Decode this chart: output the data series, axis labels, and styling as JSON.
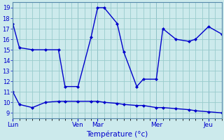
{
  "title": "Température (°c)",
  "bg_color": "#cceaec",
  "line_color": "#0000cc",
  "grid_color": "#99cccc",
  "ylim": [
    8.5,
    19.5
  ],
  "yticks": [
    9,
    10,
    11,
    12,
    13,
    14,
    15,
    16,
    17,
    18,
    19
  ],
  "day_labels": [
    "Lun",
    "Ven",
    "Mar",
    "Mer",
    "Jeu"
  ],
  "day_positions": [
    0,
    10,
    13,
    22,
    30
  ],
  "xlim": [
    0,
    32
  ],
  "series1_x": [
    0,
    1,
    3,
    5,
    7,
    8,
    10,
    12,
    13,
    14,
    16,
    17,
    19,
    20,
    22,
    23,
    25,
    27,
    28,
    30,
    32
  ],
  "series1_y": [
    17.5,
    15.2,
    15.0,
    15.0,
    15.0,
    11.5,
    11.5,
    16.2,
    19.0,
    19.0,
    17.5,
    14.8,
    11.5,
    12.2,
    12.2,
    17.0,
    16.0,
    15.8,
    16.0,
    17.2,
    16.5
  ],
  "series2_x": [
    0,
    1,
    3,
    5,
    7,
    8,
    10,
    12,
    13,
    14,
    16,
    17,
    19,
    20,
    22,
    23,
    25,
    27,
    28,
    30,
    32
  ],
  "series2_y": [
    11.0,
    9.8,
    9.5,
    10.0,
    10.1,
    10.1,
    10.1,
    10.1,
    10.1,
    10.0,
    9.9,
    9.8,
    9.7,
    9.7,
    9.5,
    9.5,
    9.4,
    9.3,
    9.2,
    9.1,
    9.0
  ]
}
